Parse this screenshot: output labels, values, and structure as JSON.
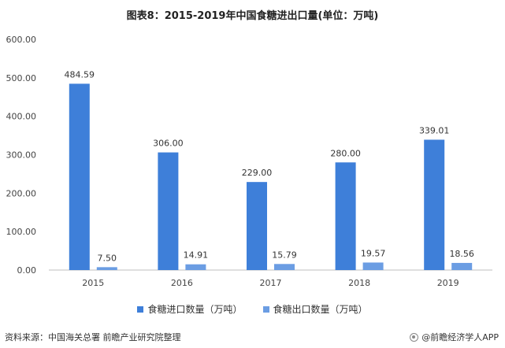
{
  "chart_data": {
    "type": "bar",
    "title": "图表8：2015-2019年中国食糖进出口量(单位：万吨)",
    "categories": [
      "2015",
      "2016",
      "2017",
      "2018",
      "2019"
    ],
    "series": [
      {
        "name": "食糖进口数量（万吨）",
        "values": [
          484.59,
          306.0,
          229.0,
          280.0,
          339.01
        ],
        "labels": [
          "484.59",
          "306.00",
          "229.00",
          "280.00",
          "339.01"
        ],
        "color": "#3e7fd9"
      },
      {
        "name": "食糖出口数量（万吨）",
        "values": [
          7.5,
          14.91,
          15.79,
          19.57,
          18.56
        ],
        "labels": [
          "7.50",
          "14.91",
          "15.79",
          "19.57",
          "18.56"
        ],
        "color": "#6b9de3"
      }
    ],
    "ylim": [
      0,
      600
    ],
    "yticks": [
      "0.00",
      "100.00",
      "200.00",
      "300.00",
      "400.00",
      "500.00",
      "600.00"
    ],
    "grid": false,
    "legend_position": "bottom"
  },
  "footer": {
    "source": "资料来源：中国海关总署 前瞻产业研究院整理",
    "brand": "@前瞻经济学人APP"
  }
}
